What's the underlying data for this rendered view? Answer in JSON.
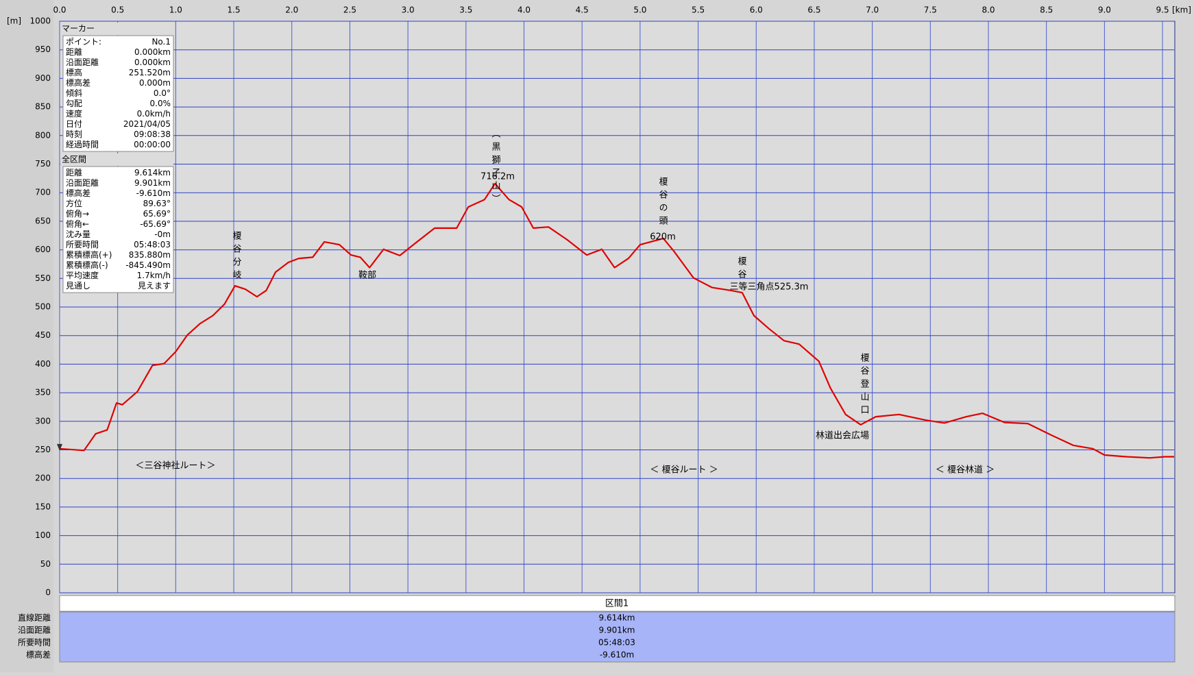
{
  "chart_data": {
    "type": "line",
    "x_label": "[km]",
    "y_label": "[m]",
    "x": [
      0,
      0.21,
      0.31,
      0.41,
      0.49,
      0.54,
      0.67,
      0.8,
      0.9,
      1.0,
      1.1,
      1.21,
      1.32,
      1.42,
      1.51,
      1.6,
      1.7,
      1.78,
      1.86,
      1.97,
      2.06,
      2.18,
      2.28,
      2.41,
      2.51,
      2.59,
      2.67,
      2.79,
      2.93,
      3.06,
      3.23,
      3.42,
      3.52,
      3.66,
      3.75,
      3.87,
      3.98,
      4.08,
      4.21,
      4.37,
      4.54,
      4.67,
      4.78,
      4.9,
      5.0,
      5.2,
      5.29,
      5.46,
      5.62,
      5.78,
      5.88,
      5.98,
      6.11,
      6.24,
      6.37,
      6.54,
      6.64,
      6.77,
      6.9,
      7.03,
      7.23,
      7.46,
      7.62,
      7.81,
      7.95,
      8.14,
      8.34,
      8.54,
      8.73,
      8.9,
      9.0,
      9.19,
      9.39,
      9.52,
      9.6
    ],
    "values": [
      252,
      249,
      278,
      285,
      332,
      329,
      352,
      398,
      401,
      422,
      451,
      471,
      485,
      505,
      537,
      531,
      518,
      529,
      561,
      578,
      585,
      587,
      614,
      609,
      591,
      587,
      569,
      601,
      590,
      611,
      638,
      638,
      675,
      688,
      716,
      688,
      675,
      638,
      640,
      618,
      591,
      601,
      569,
      585,
      609,
      620,
      598,
      551,
      534,
      529,
      525,
      485,
      462,
      441,
      435,
      405,
      358,
      312,
      294,
      308,
      312,
      302,
      297,
      308,
      314,
      298,
      296,
      276,
      258,
      252,
      241,
      238,
      236,
      238,
      238
    ],
    "color": "#e00000",
    "xlim": [
      0,
      9.6
    ],
    "ylim": [
      0,
      1000
    ],
    "xticks": [
      {
        "value": 0,
        "label": "0.0"
      },
      0.5,
      {
        "value": 1,
        "label": "1.0"
      },
      1.5,
      {
        "value": 2,
        "label": "2.0"
      },
      2.5,
      {
        "value": 3,
        "label": "3.0"
      },
      3.5,
      {
        "value": 4,
        "label": "4.0"
      },
      4.5,
      {
        "value": 5,
        "label": "5.0"
      },
      5.5,
      {
        "value": 6,
        "label": "6.0"
      },
      6.5,
      {
        "value": 7,
        "label": "7.0"
      },
      7.5,
      {
        "value": 8,
        "label": "8.0"
      },
      8.5,
      {
        "value": 9,
        "label": "9.0"
      },
      9.5
    ],
    "yticks": [
      0,
      50,
      100,
      150,
      200,
      250,
      300,
      350,
      400,
      450,
      500,
      550,
      600,
      650,
      700,
      750,
      800,
      850,
      900,
      950,
      1000
    ],
    "grid": true,
    "annotations": [
      "榎谷分岐",
      "鞍部",
      "（黒獅子山）",
      "716.2m",
      "榎谷の頭",
      "620m",
      "榎谷",
      "三等三角点525.3m",
      "榎谷登山口",
      "林道出会広場",
      "＜三谷神社ルート＞",
      "＜ 榎谷ルート ＞",
      "＜ 榎谷林道 ＞"
    ]
  },
  "marker_panel": {
    "title": "マーカー",
    "rows": [
      [
        "ポイント:",
        "No.1"
      ],
      [
        "距離",
        "0.000km"
      ],
      [
        "沿面距離",
        "0.000km"
      ],
      [
        "標高",
        "251.520m"
      ],
      [
        "標高差",
        "0.000m"
      ],
      [
        "傾斜",
        "0.0°"
      ],
      [
        "勾配",
        "0.0%"
      ],
      [
        "速度",
        "0.0km/h"
      ],
      [
        "日付",
        "2021/04/05"
      ],
      [
        "時刻",
        "09:08:38"
      ],
      [
        "経過時間",
        "00:00:00"
      ]
    ]
  },
  "total_panel": {
    "title": "全区間",
    "rows": [
      [
        "距離",
        "9.614km"
      ],
      [
        "沿面距離",
        "9.901km"
      ],
      [
        "標高差",
        "-9.610m"
      ],
      [
        "方位",
        "89.63°"
      ],
      [
        "俯角→",
        "65.69°"
      ],
      [
        "俯角←",
        "-65.69°"
      ],
      [
        "沈み量",
        "-0m"
      ],
      [
        "所要時間",
        "05:48:03"
      ],
      [
        "累積標高(+)",
        "835.880m"
      ],
      [
        "累積標高(-)",
        "-845.490m"
      ],
      [
        "平均速度",
        "1.7km/h"
      ],
      [
        "見通し",
        "見えます"
      ]
    ]
  },
  "section_table": {
    "header": "区間1",
    "rows": [
      [
        "直線距離",
        "9.614km"
      ],
      [
        "沿面距離",
        "9.901km"
      ],
      [
        "所要時間",
        "05:48:03"
      ],
      [
        "標高差",
        "-9.610m"
      ]
    ]
  }
}
